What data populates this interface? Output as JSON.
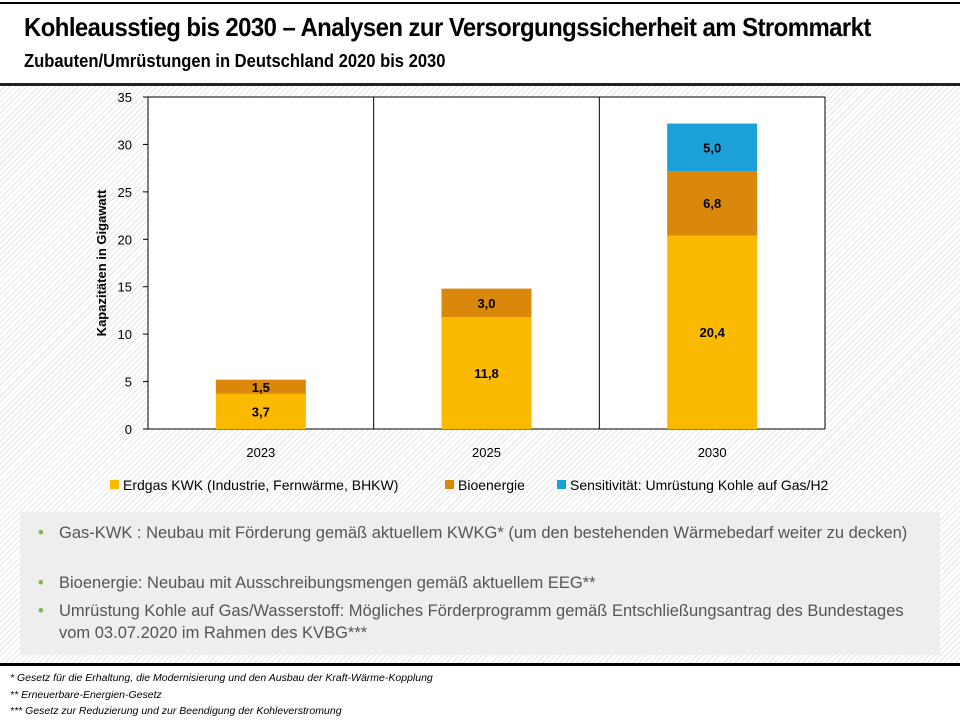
{
  "header": {
    "title": "Kohleausstieg bis 2030 – Analysen zur Versorgungssicherheit am Strommarkt",
    "subtitle": "Zubauten/Umrüstungen in Deutschland 2020 bis 2030"
  },
  "chart_data": {
    "type": "bar",
    "stacked": true,
    "categories": [
      "2023",
      "2025",
      "2030"
    ],
    "ylabel": "Kapazitäten in Gigawatt",
    "ylim": [
      0,
      35
    ],
    "yticks": [
      0,
      5,
      10,
      15,
      20,
      25,
      30,
      35
    ],
    "grid": "vertical category separators",
    "legend_position": "bottom",
    "series": [
      {
        "name": "Erdgas KWK (Industrie, Fernwärme, BHKW)",
        "color": "#FBBA00",
        "values": [
          3.7,
          11.8,
          20.4
        ],
        "labels": [
          "3,7",
          "11,8",
          "20,4"
        ]
      },
      {
        "name": "Bioenergie",
        "color": "#D9880A",
        "values": [
          1.5,
          3.0,
          6.8
        ],
        "labels": [
          "1,5",
          "3,0",
          "6,8"
        ]
      },
      {
        "name": "Sensitivität: Umrüstung Kohle auf Gas/H2",
        "color": "#1BA0D8",
        "values": [
          null,
          null,
          5.0
        ],
        "labels": [
          "",
          "",
          "5,0"
        ]
      }
    ]
  },
  "bullets": [
    "Gas-KWK : Neubau mit Förderung gemäß aktuellem KWKG* (um den bestehenden Wärmebedarf weiter zu decken)",
    "Bioenergie: Neubau mit Ausschreibungsmengen gemäß aktuellem EEG**",
    "Umrüstung Kohle auf Gas/Wasserstoff: Mögliches Förderprogramm gemäß Entschließungsantrag des Bundestages vom 03.07.2020 im Rahmen des KVBG***"
  ],
  "bullet_marker": "•",
  "footnotes": [
    "* Gesetz für die Erhaltung, die Modernisierung und den Ausbau der Kraft-Wärme-Kopplung",
    "** Erneuerbare-Energien-Gesetz",
    "*** Gesetz zur Reduzierung und zur Beendigung der Kohleverstromung"
  ]
}
